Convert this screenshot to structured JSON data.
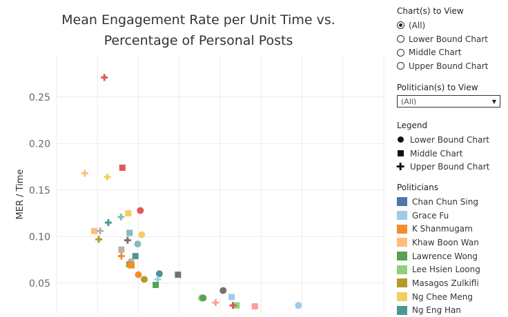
{
  "chart_data": {
    "type": "scatter",
    "title_lines": [
      "Mean Engagement Rate per Unit Time vs.",
      "Percentage of Personal Posts"
    ],
    "ylabel": "MER / Time",
    "y_ticks": [
      "0.25",
      "0.20",
      "0.15",
      "0.10",
      "0.05"
    ],
    "y_tick_values": [
      0.25,
      0.2,
      0.15,
      0.1,
      0.05
    ],
    "ylim": [
      0.018,
      0.295
    ],
    "xlim": [
      0,
      100
    ],
    "x_grid": [
      0,
      12.5,
      25,
      37.5,
      50,
      62.5,
      75,
      87.5,
      100
    ],
    "grid": true,
    "points": [
      {
        "x": 14.6,
        "y": 0.271,
        "shape": "cross",
        "color": "#e15759"
      },
      {
        "x": 8.6,
        "y": 0.168,
        "shape": "cross",
        "color": "#ffbe7d"
      },
      {
        "x": 15.5,
        "y": 0.164,
        "shape": "cross",
        "color": "#f1ce63"
      },
      {
        "x": 20.1,
        "y": 0.174,
        "shape": "square",
        "color": "#e15759"
      },
      {
        "x": 25.6,
        "y": 0.128,
        "shape": "circle",
        "color": "#e15759"
      },
      {
        "x": 21.9,
        "y": 0.125,
        "shape": "square",
        "color": "#f1ce63"
      },
      {
        "x": 19.7,
        "y": 0.121,
        "shape": "cross",
        "color": "#86bcb6"
      },
      {
        "x": 15.8,
        "y": 0.115,
        "shape": "cross",
        "color": "#499894"
      },
      {
        "x": 11.5,
        "y": 0.106,
        "shape": "square",
        "color": "#ffbe7d"
      },
      {
        "x": 13.3,
        "y": 0.106,
        "shape": "cross",
        "color": "#bab0ac"
      },
      {
        "x": 22.3,
        "y": 0.104,
        "shape": "square",
        "color": "#86bcb6"
      },
      {
        "x": 26.0,
        "y": 0.102,
        "shape": "circle",
        "color": "#f1ce63"
      },
      {
        "x": 12.9,
        "y": 0.097,
        "shape": "cross",
        "color": "#b6992d"
      },
      {
        "x": 21.7,
        "y": 0.096,
        "shape": "cross",
        "color": "#79706e"
      },
      {
        "x": 24.8,
        "y": 0.092,
        "shape": "circle",
        "color": "#86bcb6"
      },
      {
        "x": 19.8,
        "y": 0.086,
        "shape": "square",
        "color": "#bab0ac"
      },
      {
        "x": 19.8,
        "y": 0.079,
        "shape": "cross",
        "color": "#f28e2b"
      },
      {
        "x": 24.1,
        "y": 0.079,
        "shape": "square",
        "color": "#499894"
      },
      {
        "x": 22.7,
        "y": 0.073,
        "shape": "circle",
        "color": "#bab0ac"
      },
      {
        "x": 22.2,
        "y": 0.07,
        "shape": "square",
        "color": "#b6992d"
      },
      {
        "x": 22.9,
        "y": 0.069,
        "shape": "square",
        "color": "#f28e2b"
      },
      {
        "x": 25.0,
        "y": 0.059,
        "shape": "circle",
        "color": "#f28e2b"
      },
      {
        "x": 26.8,
        "y": 0.054,
        "shape": "circle",
        "color": "#b6992d"
      },
      {
        "x": 31.4,
        "y": 0.06,
        "shape": "circle",
        "color": "#499894"
      },
      {
        "x": 37.1,
        "y": 0.059,
        "shape": "square",
        "color": "#79706e"
      },
      {
        "x": 30.9,
        "y": 0.054,
        "shape": "cross",
        "color": "#a0cbe8"
      },
      {
        "x": 30.3,
        "y": 0.048,
        "shape": "square",
        "color": "#59a14f"
      },
      {
        "x": 44.3,
        "y": 0.034,
        "shape": "circle",
        "color": "#8cd17d"
      },
      {
        "x": 44.8,
        "y": 0.034,
        "shape": "circle",
        "color": "#59a14f"
      },
      {
        "x": 50.9,
        "y": 0.042,
        "shape": "circle",
        "color": "#79706e"
      },
      {
        "x": 53.5,
        "y": 0.035,
        "shape": "square",
        "color": "#a0cbe8"
      },
      {
        "x": 48.6,
        "y": 0.029,
        "shape": "cross",
        "color": "#ff9d9a"
      },
      {
        "x": 55.0,
        "y": 0.026,
        "shape": "square",
        "color": "#8cd17d"
      },
      {
        "x": 53.9,
        "y": 0.026,
        "shape": "cross",
        "color": "#e15759"
      },
      {
        "x": 60.6,
        "y": 0.025,
        "shape": "square",
        "color": "#ff9d9a"
      },
      {
        "x": 73.9,
        "y": 0.026,
        "shape": "circle",
        "color": "#a0cbe8"
      }
    ]
  },
  "panel": {
    "chart_view_title": "Chart(s) to View",
    "chart_view_options": [
      {
        "label": "(All)",
        "checked": true
      },
      {
        "label": "Lower Bound Chart",
        "checked": false
      },
      {
        "label": "Middle Chart",
        "checked": false
      },
      {
        "label": "Upper Bound Chart",
        "checked": false
      }
    ],
    "politician_view_title": "Politician(s) to View",
    "politician_select_value": "(All)",
    "legend_title": "Legend",
    "legend_items": [
      {
        "label": "Lower Bound Chart",
        "shape": "circle"
      },
      {
        "label": "Middle Chart",
        "shape": "square"
      },
      {
        "label": "Upper Bound Chart",
        "shape": "cross"
      }
    ],
    "politicians_title": "Politicians",
    "politicians": [
      {
        "name": "Chan Chun Sing",
        "color": "#4e79a7"
      },
      {
        "name": "Grace Fu",
        "color": "#a0cbe8"
      },
      {
        "name": "K Shanmugam",
        "color": "#f28e2b"
      },
      {
        "name": "Khaw Boon Wan",
        "color": "#ffbe7d"
      },
      {
        "name": "Lawrence Wong",
        "color": "#59a14f"
      },
      {
        "name": "Lee Hsien Loong",
        "color": "#8cd17d"
      },
      {
        "name": "Masagos Zulkifli",
        "color": "#b6992d"
      },
      {
        "name": "Ng Chee Meng",
        "color": "#f1ce63"
      },
      {
        "name": "Ng Eng Han",
        "color": "#499894"
      }
    ]
  }
}
